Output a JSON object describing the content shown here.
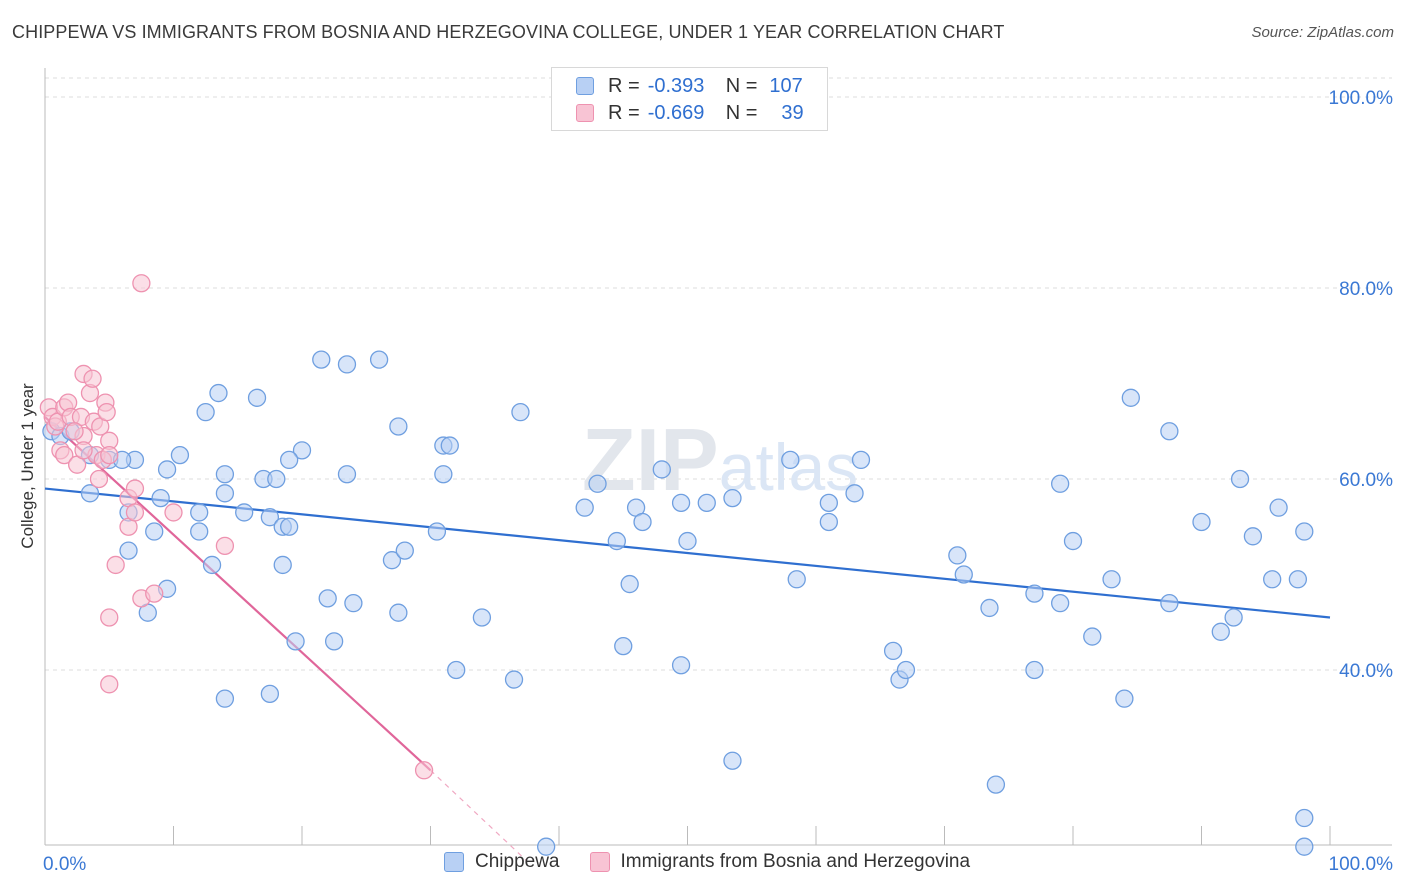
{
  "header": {
    "title": "CHIPPEWA VS IMMIGRANTS FROM BOSNIA AND HERZEGOVINA COLLEGE, UNDER 1 YEAR CORRELATION CHART",
    "source": "Source: ZipAtlas.com"
  },
  "watermark": "ZIPatlas",
  "stats": {
    "chippewa": {
      "r_label": "R =",
      "r": "-0.393",
      "n_label": "N =",
      "n": "107"
    },
    "bosnia": {
      "r_label": "R =",
      "r": "-0.669",
      "n_label": "N =",
      "n": "39"
    }
  },
  "colors": {
    "blue_fill": "#b8d0f4",
    "blue_stroke": "#6f9fe0",
    "blue_line": "#2f6fd0",
    "pink_fill": "#f8c4d4",
    "pink_stroke": "#ee92b0",
    "pink_line": "#e0669a",
    "tick_text": "#3a78d4",
    "grid": "#dddddd"
  },
  "chart_data": {
    "type": "scatter",
    "title": "CHIPPEWA VS IMMIGRANTS FROM BOSNIA AND HERZEGOVINA COLLEGE, UNDER 1 YEAR CORRELATION CHART",
    "xlabel": "",
    "ylabel": "College, Under 1 year",
    "x_ticks": [
      "0.0%",
      "100.0%"
    ],
    "y_ticks": [
      "100.0%",
      "80.0%",
      "60.0%",
      "40.0%"
    ],
    "y_tick_values": [
      100,
      80,
      60,
      40
    ],
    "xlim": [
      0,
      100
    ],
    "ylim": [
      20,
      100
    ],
    "series": [
      {
        "name": "Chippewa",
        "color": "#6f9fe0",
        "points": [
          [
            0.5,
            65
          ],
          [
            1.2,
            64.5
          ],
          [
            2,
            65
          ],
          [
            3.5,
            62.5
          ],
          [
            5,
            62
          ],
          [
            7,
            62
          ],
          [
            10.5,
            62.5
          ],
          [
            9.5,
            61
          ],
          [
            3.5,
            58.5
          ],
          [
            6,
            62
          ],
          [
            9,
            58
          ],
          [
            14,
            58.5
          ],
          [
            14,
            60.5
          ],
          [
            17,
            60
          ],
          [
            18,
            60
          ],
          [
            20,
            63
          ],
          [
            19,
            62
          ],
          [
            13.5,
            69
          ],
          [
            16.5,
            68.5
          ],
          [
            21.5,
            72.5
          ],
          [
            23.5,
            72
          ],
          [
            26,
            72.5
          ],
          [
            23.5,
            60.5
          ],
          [
            27.5,
            65.5
          ],
          [
            31,
            63.5
          ],
          [
            31,
            60.5
          ],
          [
            31.5,
            63.5
          ],
          [
            37,
            67
          ],
          [
            12.5,
            67
          ],
          [
            12,
            54.5
          ],
          [
            8.5,
            54.5
          ],
          [
            6.5,
            56.5
          ],
          [
            12,
            56.5
          ],
          [
            17.5,
            56
          ],
          [
            18.5,
            55
          ],
          [
            15.5,
            56.5
          ],
          [
            19,
            55
          ],
          [
            13,
            51
          ],
          [
            6.5,
            52.5
          ],
          [
            9.5,
            48.5
          ],
          [
            8,
            46
          ],
          [
            18.5,
            51
          ],
          [
            27,
            51.5
          ],
          [
            28,
            52.5
          ],
          [
            30.5,
            54.5
          ],
          [
            24,
            47
          ],
          [
            22,
            47.5
          ],
          [
            27.5,
            46
          ],
          [
            34,
            45.5
          ],
          [
            22.5,
            43
          ],
          [
            19.5,
            43
          ],
          [
            32,
            40
          ],
          [
            36.5,
            39
          ],
          [
            17.5,
            37.5
          ],
          [
            14,
            37
          ],
          [
            43,
            59.5
          ],
          [
            42,
            57
          ],
          [
            44.5,
            53.5
          ],
          [
            46,
            57
          ],
          [
            46.5,
            55.5
          ],
          [
            48,
            61
          ],
          [
            49.5,
            57.5
          ],
          [
            50,
            53.5
          ],
          [
            51.5,
            57.5
          ],
          [
            53.5,
            58
          ],
          [
            45.5,
            49
          ],
          [
            58,
            62
          ],
          [
            58.5,
            49.5
          ],
          [
            61,
            55.5
          ],
          [
            61,
            57.5
          ],
          [
            63,
            58.5
          ],
          [
            63.5,
            62
          ],
          [
            45,
            42.5
          ],
          [
            49.5,
            40.5
          ],
          [
            53.5,
            30.5
          ],
          [
            66,
            42
          ],
          [
            66.5,
            39
          ],
          [
            67,
            40
          ],
          [
            71,
            52
          ],
          [
            71.5,
            50
          ],
          [
            73.5,
            46.5
          ],
          [
            77,
            48
          ],
          [
            77,
            40
          ],
          [
            79,
            47
          ],
          [
            80,
            53.5
          ],
          [
            81.5,
            43.5
          ],
          [
            83,
            49.5
          ],
          [
            84.5,
            68.5
          ],
          [
            87.5,
            47
          ],
          [
            87.5,
            65
          ],
          [
            90,
            55.5
          ],
          [
            91.5,
            44
          ],
          [
            92.5,
            45.5
          ],
          [
            93,
            60
          ],
          [
            94,
            54
          ],
          [
            95.5,
            49.5
          ],
          [
            96,
            57
          ],
          [
            97.5,
            49.5
          ],
          [
            98,
            54.5
          ],
          [
            84,
            37
          ],
          [
            74,
            28
          ],
          [
            98,
            24.5
          ],
          [
            98,
            21.5
          ],
          [
            39,
            21.5
          ],
          [
            79,
            59.5
          ]
        ]
      },
      {
        "name": "Immigrants from Bosnia and Herzegovina",
        "color": "#ee92b0",
        "points": [
          [
            0.3,
            67.5
          ],
          [
            0.6,
            66.5
          ],
          [
            0.8,
            65.5
          ],
          [
            1,
            66
          ],
          [
            1.2,
            63
          ],
          [
            1.5,
            67.5
          ],
          [
            1.5,
            62.5
          ],
          [
            1.8,
            68
          ],
          [
            2,
            66.5
          ],
          [
            2.5,
            61.5
          ],
          [
            2.8,
            66.5
          ],
          [
            3,
            64.5
          ],
          [
            3,
            71
          ],
          [
            3.5,
            69
          ],
          [
            3.7,
            70.5
          ],
          [
            3.8,
            66
          ],
          [
            4,
            62.5
          ],
          [
            4.2,
            60
          ],
          [
            4.3,
            65.5
          ],
          [
            4.5,
            62
          ],
          [
            4.7,
            68
          ],
          [
            4.8,
            67
          ],
          [
            5,
            64
          ],
          [
            5,
            62.5
          ],
          [
            5.5,
            51
          ],
          [
            6.5,
            55
          ],
          [
            6.5,
            58
          ],
          [
            7,
            59
          ],
          [
            7,
            56.5
          ],
          [
            7.5,
            47.5
          ],
          [
            8.5,
            48
          ],
          [
            7.5,
            80.5
          ],
          [
            5,
            45.5
          ],
          [
            5,
            38.5
          ],
          [
            10,
            56.5
          ],
          [
            14,
            53
          ],
          [
            3,
            63
          ],
          [
            2.3,
            65
          ],
          [
            29.5,
            29.5
          ]
        ]
      }
    ],
    "trend_lines": [
      {
        "series": "Chippewa",
        "x": [
          0,
          100
        ],
        "y": [
          59,
          45.5
        ]
      },
      {
        "series": "Immigrants from Bosnia and Herzegovina",
        "x": [
          0,
          30
        ],
        "y": [
          66.5,
          29.5
        ],
        "dashed_extension": [
          [
            30,
            29.5
          ],
          [
            37.5,
            20
          ]
        ]
      }
    ]
  },
  "legend": {
    "items": [
      "Chippewa",
      "Immigrants from Bosnia and Herzegovina"
    ]
  }
}
